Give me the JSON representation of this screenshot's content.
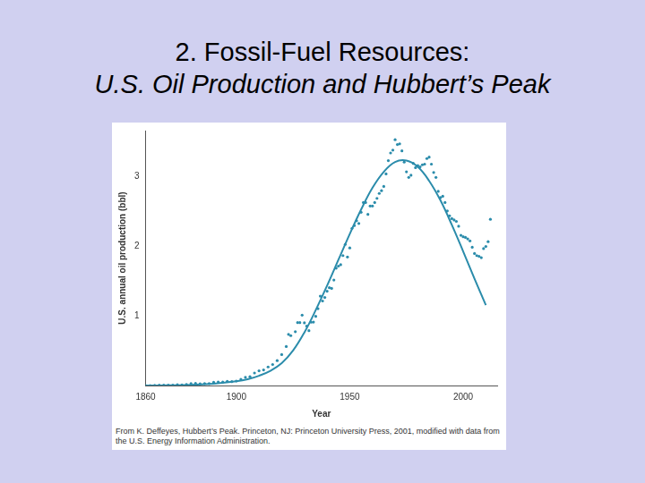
{
  "slide": {
    "title": "2. Fossil-Fuel Resources:",
    "subtitle": "U.S. Oil Production and Hubbert’s Peak"
  },
  "chart_data": {
    "type": "scatter",
    "xlabel": "Year",
    "ylabel": "U.S. annual oil production (bbl)",
    "source": "From K. Deffeyes, Hubbert’s Peak. Princeton, NJ: Princeton University Press, 2001, modified with data from the U.S. Energy Information Administration.",
    "xlim": [
      1860,
      2015
    ],
    "xticks": [
      1860,
      1900,
      1950,
      2000
    ],
    "ylim": [
      0,
      3.65
    ],
    "yticks": [
      1,
      2,
      3
    ],
    "grid": false,
    "series": [
      {
        "type": "line",
        "color": "#2b8cab",
        "line_style": "solid",
        "x": [
          1860,
          1870,
          1880,
          1890,
          1900,
          1905,
          1910,
          1915,
          1920,
          1925,
          1930,
          1935,
          1940,
          1945,
          1950,
          1955,
          1960,
          1965,
          1970,
          1975,
          1980,
          1985,
          1990,
          1995,
          2000,
          2005,
          2010
        ],
        "values": [
          0,
          0.003,
          0.01,
          0.025,
          0.06,
          0.09,
          0.14,
          0.21,
          0.32,
          0.5,
          0.76,
          1.08,
          1.43,
          1.8,
          2.17,
          2.52,
          2.83,
          3.06,
          3.2,
          3.22,
          3.13,
          2.93,
          2.65,
          2.3,
          1.92,
          1.53,
          1.15
        ]
      },
      {
        "type": "scatter",
        "color": "#2b8cab",
        "marker": "circle",
        "x": [
          1860,
          1862,
          1864,
          1866,
          1868,
          1870,
          1872,
          1874,
          1876,
          1878,
          1880,
          1882,
          1884,
          1886,
          1888,
          1890,
          1892,
          1894,
          1896,
          1898,
          1900,
          1902,
          1904,
          1906,
          1908,
          1910,
          1912,
          1914,
          1916,
          1918,
          1920,
          1922,
          1923,
          1924,
          1926,
          1927,
          1928,
          1929,
          1930,
          1931,
          1932,
          1933,
          1934,
          1935,
          1936,
          1937,
          1938,
          1939,
          1940,
          1941,
          1942,
          1943,
          1944,
          1945,
          1946,
          1947,
          1948,
          1949,
          1950,
          1951,
          1952,
          1953,
          1954,
          1955,
          1956,
          1957,
          1958,
          1959,
          1960,
          1961,
          1962,
          1963,
          1964,
          1965,
          1966,
          1967,
          1968,
          1969,
          1970,
          1971,
          1972,
          1973,
          1974,
          1975,
          1976,
          1977,
          1978,
          1979,
          1980,
          1981,
          1982,
          1983,
          1984,
          1985,
          1986,
          1987,
          1988,
          1989,
          1990,
          1991,
          1992,
          1993,
          1994,
          1995,
          1996,
          1997,
          1998,
          1999,
          2000,
          2001,
          2002,
          2003,
          2004,
          2005,
          2006,
          2007,
          2008,
          2009,
          2010,
          2011,
          2012
        ],
        "values": [
          0,
          0,
          0.002,
          0.004,
          0.004,
          0.005,
          0.006,
          0.011,
          0.009,
          0.015,
          0.026,
          0.03,
          0.024,
          0.028,
          0.028,
          0.046,
          0.051,
          0.049,
          0.061,
          0.055,
          0.064,
          0.089,
          0.117,
          0.126,
          0.179,
          0.21,
          0.223,
          0.266,
          0.301,
          0.356,
          0.443,
          0.558,
          0.732,
          0.714,
          0.771,
          0.901,
          0.901,
          1.007,
          0.898,
          0.851,
          0.785,
          0.906,
          0.908,
          0.99,
          1.1,
          1.28,
          1.21,
          1.26,
          1.35,
          1.4,
          1.39,
          1.51,
          1.68,
          1.71,
          1.73,
          1.86,
          2.02,
          1.84,
          1.97,
          2.25,
          2.29,
          2.36,
          2.32,
          2.48,
          2.62,
          2.62,
          2.45,
          2.57,
          2.57,
          2.62,
          2.68,
          2.75,
          2.79,
          2.85,
          3.03,
          3.22,
          3.33,
          3.37,
          3.52,
          3.45,
          3.46,
          3.36,
          3.2,
          3.06,
          2.98,
          3.01,
          3.18,
          3.12,
          3.15,
          3.13,
          3.16,
          3.17,
          3.25,
          3.27,
          3.17,
          3.05,
          2.98,
          2.78,
          2.69,
          2.71,
          2.62,
          2.5,
          2.43,
          2.39,
          2.37,
          2.35,
          2.28,
          2.15,
          2.13,
          2.12,
          2.1,
          2.07,
          1.98,
          1.89,
          1.86,
          1.85,
          1.83,
          1.96,
          1.99,
          2.06,
          2.38
        ]
      }
    ]
  }
}
